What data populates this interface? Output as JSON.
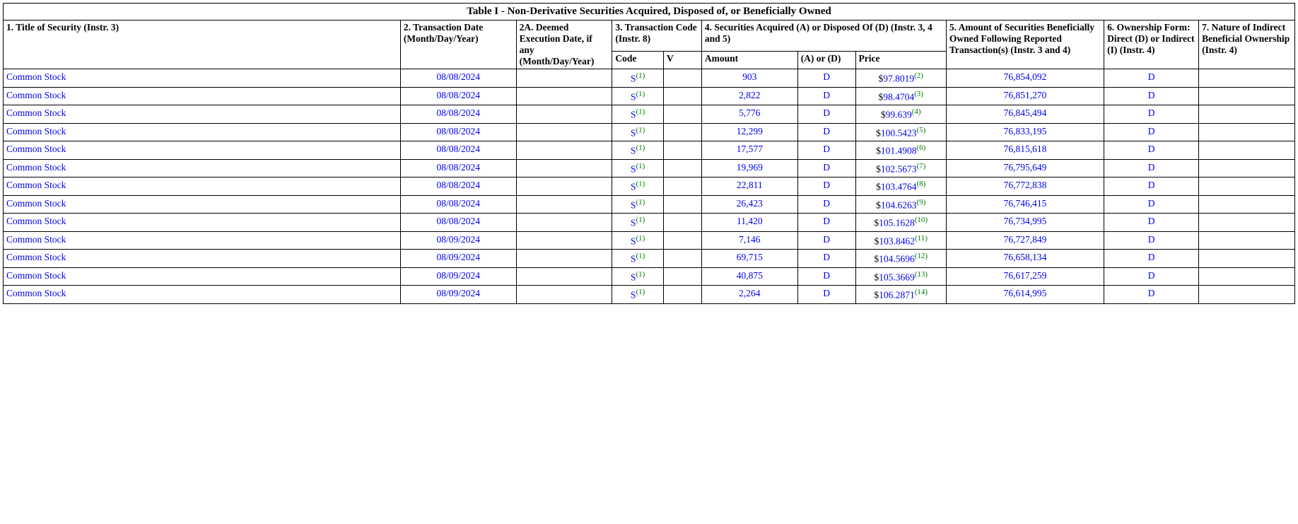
{
  "table": {
    "caption": "Table I - Non-Derivative Securities Acquired, Disposed of, or Beneficially Owned",
    "headers": {
      "h1": "1. Title of Security (Instr. 3)",
      "h2": "2. Transaction Date (Month/Day/Year)",
      "h2a": "2A. Deemed Execution Date, if any (Month/Day/Year)",
      "h3": "3. Transaction Code (Instr. 8)",
      "h4": "4. Securities Acquired (A) or Disposed Of (D) (Instr. 3, 4 and 5)",
      "h5": "5. Amount of Securities Beneficially Owned Following Reported Transaction(s) (Instr. 3 and 4)",
      "h6": "6. Ownership Form: Direct (D) or Indirect (I) (Instr. 4)",
      "h7": "7. Nature of Indirect Beneficial Ownership (Instr. 4)"
    },
    "subheaders": {
      "code": "Code",
      "v": "V",
      "amount": "Amount",
      "ad": "(A) or (D)",
      "price": "Price"
    },
    "rows": [
      {
        "title": "Common Stock",
        "date": "08/08/2024",
        "deemed": "",
        "code": "S",
        "code_fn": "(1)",
        "v": "",
        "amount": "903",
        "ad": "D",
        "price_prefix": "$",
        "price": "97.8019",
        "price_fn": "(2)",
        "owned": "76,854,092",
        "form": "D",
        "nature": ""
      },
      {
        "title": "Common Stock",
        "date": "08/08/2024",
        "deemed": "",
        "code": "S",
        "code_fn": "(1)",
        "v": "",
        "amount": "2,822",
        "ad": "D",
        "price_prefix": "$",
        "price": "98.4704",
        "price_fn": "(3)",
        "owned": "76,851,270",
        "form": "D",
        "nature": ""
      },
      {
        "title": "Common Stock",
        "date": "08/08/2024",
        "deemed": "",
        "code": "S",
        "code_fn": "(1)",
        "v": "",
        "amount": "5,776",
        "ad": "D",
        "price_prefix": "$",
        "price": "99.639",
        "price_fn": "(4)",
        "owned": "76,845,494",
        "form": "D",
        "nature": ""
      },
      {
        "title": "Common Stock",
        "date": "08/08/2024",
        "deemed": "",
        "code": "S",
        "code_fn": "(1)",
        "v": "",
        "amount": "12,299",
        "ad": "D",
        "price_prefix": "$",
        "price": "100.5423",
        "price_fn": "(5)",
        "owned": "76,833,195",
        "form": "D",
        "nature": ""
      },
      {
        "title": "Common Stock",
        "date": "08/08/2024",
        "deemed": "",
        "code": "S",
        "code_fn": "(1)",
        "v": "",
        "amount": "17,577",
        "ad": "D",
        "price_prefix": "$",
        "price": "101.4908",
        "price_fn": "(6)",
        "owned": "76,815,618",
        "form": "D",
        "nature": ""
      },
      {
        "title": "Common Stock",
        "date": "08/08/2024",
        "deemed": "",
        "code": "S",
        "code_fn": "(1)",
        "v": "",
        "amount": "19,969",
        "ad": "D",
        "price_prefix": "$",
        "price": "102.5673",
        "price_fn": "(7)",
        "owned": "76,795,649",
        "form": "D",
        "nature": ""
      },
      {
        "title": "Common Stock",
        "date": "08/08/2024",
        "deemed": "",
        "code": "S",
        "code_fn": "(1)",
        "v": "",
        "amount": "22,811",
        "ad": "D",
        "price_prefix": "$",
        "price": "103.4764",
        "price_fn": "(8)",
        "owned": "76,772,838",
        "form": "D",
        "nature": ""
      },
      {
        "title": "Common Stock",
        "date": "08/08/2024",
        "deemed": "",
        "code": "S",
        "code_fn": "(1)",
        "v": "",
        "amount": "26,423",
        "ad": "D",
        "price_prefix": "$",
        "price": "104.6263",
        "price_fn": "(9)",
        "owned": "76,746,415",
        "form": "D",
        "nature": ""
      },
      {
        "title": "Common Stock",
        "date": "08/08/2024",
        "deemed": "",
        "code": "S",
        "code_fn": "(1)",
        "v": "",
        "amount": "11,420",
        "ad": "D",
        "price_prefix": "$",
        "price": "105.1628",
        "price_fn": "(10)",
        "owned": "76,734,995",
        "form": "D",
        "nature": ""
      },
      {
        "title": "Common Stock",
        "date": "08/09/2024",
        "deemed": "",
        "code": "S",
        "code_fn": "(1)",
        "v": "",
        "amount": "7,146",
        "ad": "D",
        "price_prefix": "$",
        "price": "103.8462",
        "price_fn": "(11)",
        "owned": "76,727,849",
        "form": "D",
        "nature": ""
      },
      {
        "title": "Common Stock",
        "date": "08/09/2024",
        "deemed": "",
        "code": "S",
        "code_fn": "(1)",
        "v": "",
        "amount": "69,715",
        "ad": "D",
        "price_prefix": "$",
        "price": "104.5696",
        "price_fn": "(12)",
        "owned": "76,658,134",
        "form": "D",
        "nature": ""
      },
      {
        "title": "Common Stock",
        "date": "08/09/2024",
        "deemed": "",
        "code": "S",
        "code_fn": "(1)",
        "v": "",
        "amount": "40,875",
        "ad": "D",
        "price_prefix": "$",
        "price": "105.3669",
        "price_fn": "(13)",
        "owned": "76,617,259",
        "form": "D",
        "nature": ""
      },
      {
        "title": "Common Stock",
        "date": "08/09/2024",
        "deemed": "",
        "code": "S",
        "code_fn": "(1)",
        "v": "",
        "amount": "2,264",
        "ad": "D",
        "price_prefix": "$",
        "price": "106.2871",
        "price_fn": "(14)",
        "owned": "76,614,995",
        "form": "D",
        "nature": ""
      }
    ]
  }
}
